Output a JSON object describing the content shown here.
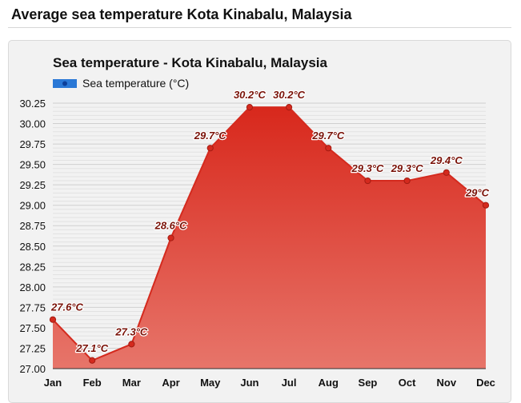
{
  "page": {
    "title": "Average sea temperature Kota Kinabalu, Malaysia"
  },
  "colors": {
    "line": "#d42a1e",
    "fill_top": "#d8281c",
    "fill_bottom": "#e7756a",
    "grid": "#d8d8d8",
    "legend": "#2a78d6",
    "label": "#7a1208"
  },
  "chart_data": {
    "type": "area",
    "title": "Sea temperature - Kota Kinabalu, Malaysia",
    "legend": "Sea temperature (°C)",
    "legend_position": "top-left",
    "grid": true,
    "xlabel": "",
    "ylabel": "",
    "ylim": [
      27.0,
      30.25
    ],
    "yticks": [
      "30.25",
      "30.00",
      "29.75",
      "29.50",
      "29.25",
      "29.00",
      "28.75",
      "28.50",
      "28.25",
      "28.00",
      "27.75",
      "27.50",
      "27.25",
      "27.00"
    ],
    "categories": [
      "Jan",
      "Feb",
      "Mar",
      "Apr",
      "May",
      "Jun",
      "Jul",
      "Aug",
      "Sep",
      "Oct",
      "Nov",
      "Dec"
    ],
    "values": [
      27.6,
      27.1,
      27.3,
      28.6,
      29.7,
      30.2,
      30.2,
      29.7,
      29.3,
      29.3,
      29.4,
      29.0
    ],
    "data_labels": [
      "27.6°C",
      "27.1°C",
      "27.3°C",
      "28.6°C",
      "29.7°C",
      "30.2°C",
      "30.2°C",
      "29.7°C",
      "29.3°C",
      "29.3°C",
      "29.4°C",
      "29°C"
    ]
  }
}
